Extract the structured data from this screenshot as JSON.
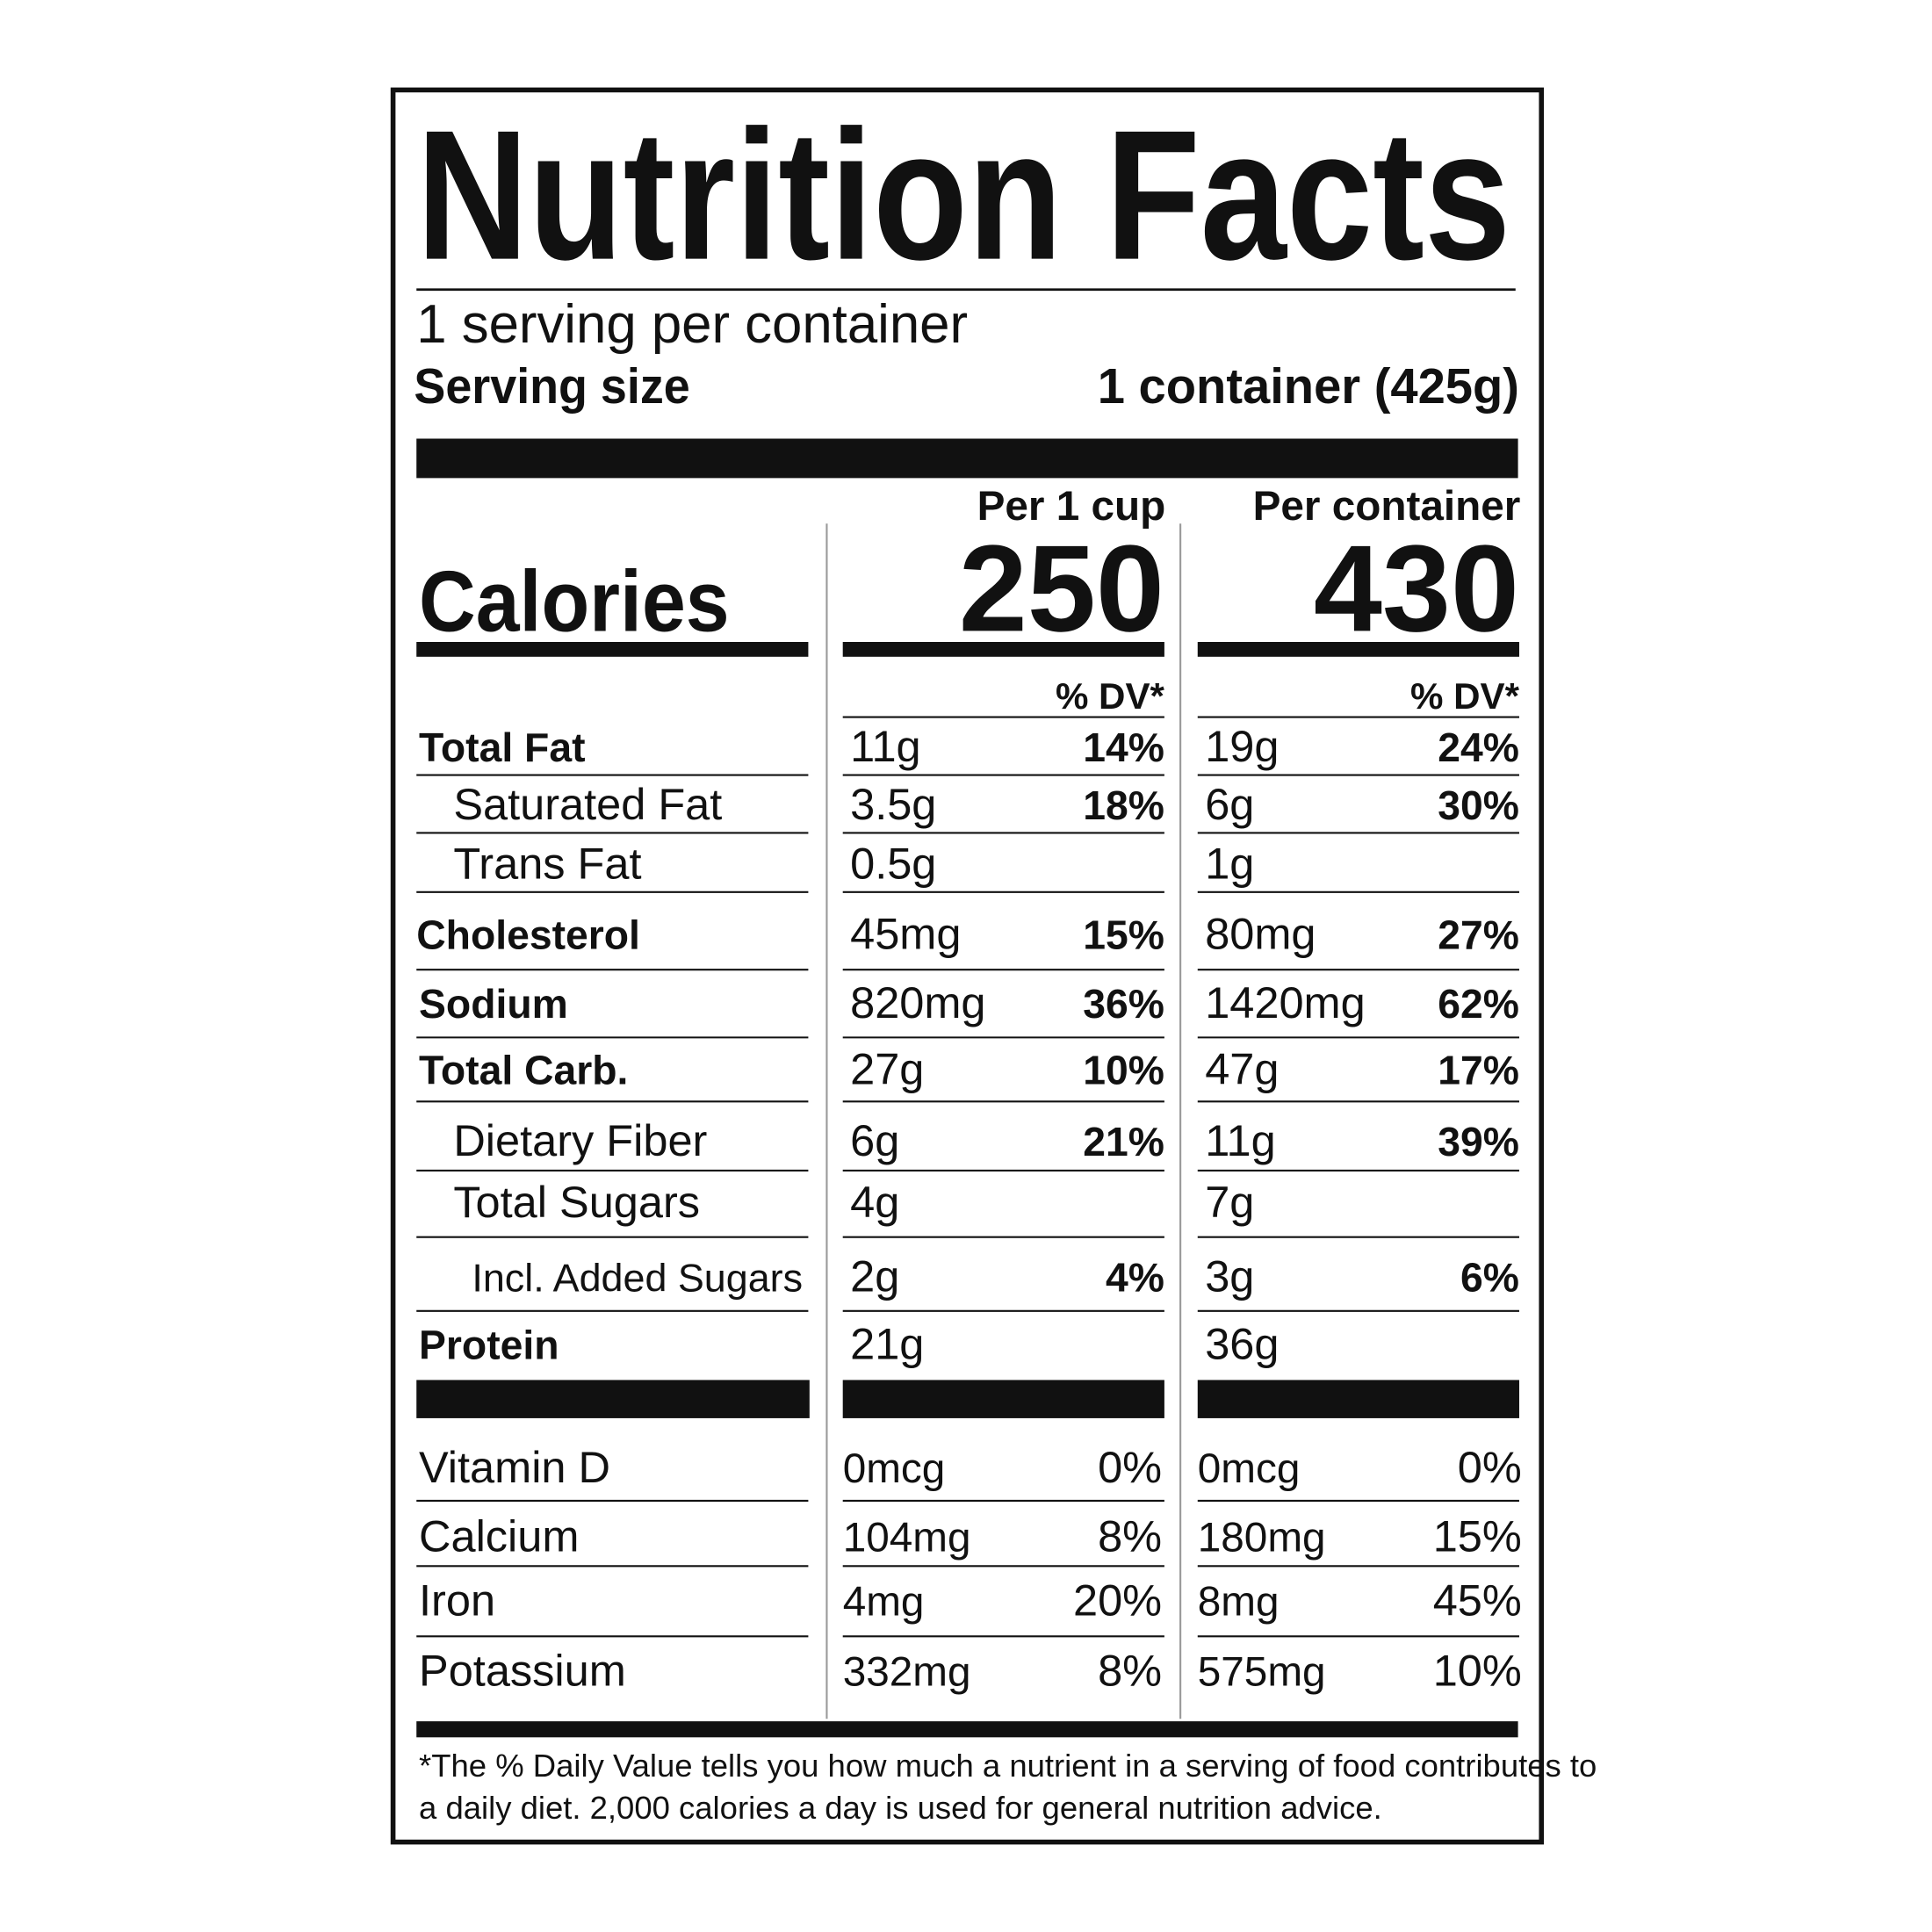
{
  "title": "Nutrition Facts",
  "servings": "1 serving per container",
  "serving_size": {
    "label": "Serving size",
    "value": "1 container (425g)"
  },
  "calories_label": "Calories",
  "columns": [
    {
      "header": "Per 1 cup",
      "calories": 250,
      "dv_header": "% DV*"
    },
    {
      "header": "Per container",
      "calories": 430,
      "dv_header": "% DV*"
    }
  ],
  "nutrients": [
    {
      "name": "Total Fat",
      "values": [
        [
          "11g",
          "14%"
        ],
        [
          "19g",
          "24%"
        ]
      ]
    },
    {
      "name": "Saturated Fat",
      "values": [
        [
          "3.5g",
          "18%"
        ],
        [
          "6g",
          "30%"
        ]
      ]
    },
    {
      "name": "Trans Fat",
      "values": [
        [
          "0.5g",
          null
        ],
        [
          "1g",
          null
        ]
      ]
    },
    {
      "name": "Cholesterol",
      "values": [
        [
          "45mg",
          "15%"
        ],
        [
          "80mg",
          "27%"
        ]
      ]
    },
    {
      "name": "Sodium",
      "values": [
        [
          "820mg",
          "36%"
        ],
        [
          "1420mg",
          "62%"
        ]
      ]
    },
    {
      "name": "Total Carb.",
      "values": [
        [
          "27g",
          "10%"
        ],
        [
          "47g",
          "17%"
        ]
      ]
    },
    {
      "name": "Dietary Fiber",
      "values": [
        [
          "6g",
          "21%"
        ],
        [
          "11g",
          "39%"
        ]
      ]
    },
    {
      "name": "Total Sugars",
      "values": [
        [
          "4g",
          null
        ],
        [
          "7g",
          null
        ]
      ]
    },
    {
      "name": "Incl. Added Sugars",
      "values": [
        [
          "2g",
          "4%"
        ],
        [
          "3g",
          "6%"
        ]
      ]
    },
    {
      "name": "Protein",
      "values": [
        [
          "21g",
          null
        ],
        [
          "36g",
          null
        ]
      ]
    }
  ],
  "vitamins": [
    {
      "name": "Vitamin D",
      "values": [
        [
          "0mcg",
          "0%"
        ],
        [
          "0mcg",
          "0%"
        ]
      ]
    },
    {
      "name": "Calcium",
      "values": [
        [
          "104mg",
          "8%"
        ],
        [
          "180mg",
          "15%"
        ]
      ]
    },
    {
      "name": "Iron",
      "values": [
        [
          "4mg",
          "20%"
        ],
        [
          "8mg",
          "45%"
        ]
      ]
    },
    {
      "name": "Potassium",
      "values": [
        [
          "332mg",
          "8%"
        ],
        [
          "575mg",
          "10%"
        ]
      ]
    }
  ],
  "footnote": [
    "*The % Daily Value tells you how much a nutrient in a serving of food contributes to",
    "a daily diet. 2,000 calories a day is used for general nutrition advice."
  ]
}
